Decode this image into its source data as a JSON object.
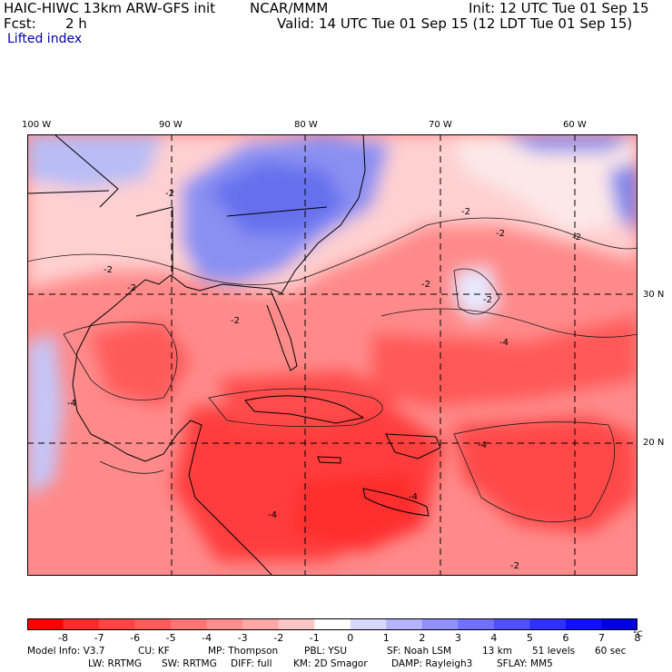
{
  "header": {
    "model_title": "HAIC-HIWC 13km ARW-GFS init",
    "org": "NCAR/MMM",
    "init": "Init: 12 UTC Tue 01 Sep 15",
    "fcst_label": "Fcst:",
    "fcst_value": "2 h",
    "valid": "Valid: 14 UTC Tue 01 Sep 15 (12 LDT Tue 01 Sep 15)",
    "field": "Lifted index"
  },
  "map": {
    "lon_labels": [
      "100 W",
      "90 W",
      "80 W",
      "70 W",
      "60 W"
    ],
    "lat_labels": [
      "30 N",
      "20 N"
    ],
    "contour_labels": [
      "-2",
      "-2",
      "-2",
      "-2",
      "-2",
      "-2",
      "-2",
      "-2",
      "-4",
      "-4",
      "-4",
      "-4",
      "-4",
      "-2",
      "-2"
    ]
  },
  "colorbar": {
    "colors": [
      "#ff0000",
      "#ff2a2a",
      "#ff4444",
      "#ff5c5c",
      "#ff7474",
      "#ff8e8e",
      "#ffa8a8",
      "#ffc4c4",
      "#ffffff",
      "#d8d8ff",
      "#b4b4ff",
      "#9090ff",
      "#7070ff",
      "#5050ff",
      "#3030ff",
      "#1010ff",
      "#0000e0"
    ],
    "ticks": [
      "-8",
      "-7",
      "-6",
      "-5",
      "-4",
      "-3",
      "-2",
      "-1",
      "0",
      "1",
      "2",
      "3",
      "4",
      "5",
      "6",
      "7",
      "8"
    ],
    "unit": "°C"
  },
  "model_info": {
    "line1": [
      "Model Info: V3.7",
      "CU: KF",
      "MP: Thompson",
      "PBL: YSU",
      "SF: Noah LSM",
      "13 km",
      "51 levels",
      "60 sec"
    ],
    "line2": [
      "LW: RRTMG",
      "SW: RRTMG",
      "DIFF: full",
      "KM: 2D Smagor",
      "DAMP: Rayleigh3",
      "SFLAY: MM5"
    ]
  }
}
